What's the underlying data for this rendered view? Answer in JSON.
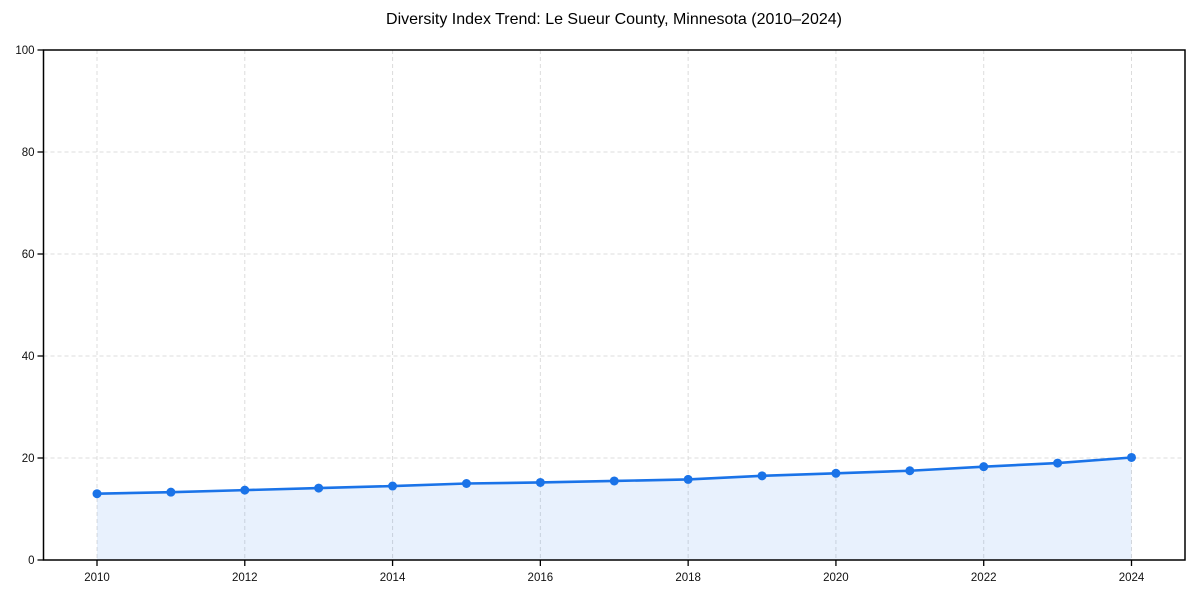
{
  "chart_data": {
    "type": "area",
    "title": "Diversity Index Trend: Le Sueur County, Minnesota (2010–2024)",
    "xlabel": "",
    "ylabel": "",
    "x": [
      2010,
      2011,
      2012,
      2013,
      2014,
      2015,
      2016,
      2017,
      2018,
      2019,
      2020,
      2021,
      2022,
      2023,
      2024
    ],
    "series": [
      {
        "name": "Diversity Index",
        "values": [
          13.0,
          13.3,
          13.7,
          14.1,
          14.5,
          15.0,
          15.2,
          15.5,
          15.8,
          16.5,
          17.0,
          17.5,
          18.3,
          19.0,
          20.1
        ]
      }
    ],
    "ylim": [
      0,
      100
    ],
    "yticks": [
      0,
      20,
      40,
      60,
      80,
      100
    ],
    "xticks": [
      2010,
      2012,
      2014,
      2016,
      2018,
      2020,
      2022,
      2024
    ],
    "grid": true,
    "grid_style": "dashed",
    "legend_position": "none",
    "colors": {
      "line": "#1a73e8",
      "marker": "#1a73e8",
      "fill": "rgba(26,115,232,0.10)",
      "grid": "#dcdcdc",
      "frame": "#000000",
      "tick_text": "#111111",
      "background": "#ffffff"
    }
  }
}
